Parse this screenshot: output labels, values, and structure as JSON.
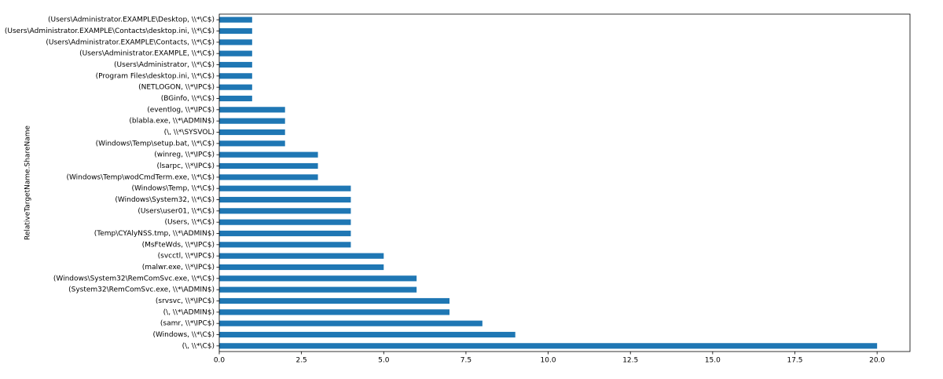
{
  "chart_data": {
    "type": "barh",
    "y_label": "RelativeTargetName.ShareName",
    "categories": [
      "(\\, \\\\*\\C$)",
      "(Windows, \\\\*\\C$)",
      "(samr, \\\\*\\IPC$)",
      "(\\, \\\\*\\ADMIN$)",
      "(srvsvc, \\\\*\\IPC$)",
      "(System32\\RemComSvc.exe, \\\\*\\ADMIN$)",
      "(Windows\\System32\\RemComSvc.exe, \\\\*\\C$)",
      "(malwr.exe, \\\\*\\IPC$)",
      "(svcctl, \\\\*\\IPC$)",
      "(MsFteWds, \\\\*\\IPC$)",
      "(Temp\\CYAlyNSS.tmp, \\\\*\\ADMIN$)",
      "(Users, \\\\*\\C$)",
      "(Users\\user01, \\\\*\\C$)",
      "(Windows\\System32, \\\\*\\C$)",
      "(Windows\\Temp, \\\\*\\C$)",
      "(Windows\\Temp\\wodCmdTerm.exe, \\\\*\\C$)",
      "(lsarpc, \\\\*\\IPC$)",
      "(winreg, \\\\*\\IPC$)",
      "(Windows\\Temp\\setup.bat, \\\\*\\C$)",
      "(\\, \\\\*\\SYSVOL)",
      "(blabla.exe, \\\\*\\ADMIN$)",
      "(eventlog, \\\\*\\IPC$)",
      "(BGinfo, \\\\*\\C$)",
      "(NETLOGON, \\\\*\\IPC$)",
      "(Program Files\\desktop.ini, \\\\*\\C$)",
      "(Users\\Administrator, \\\\*\\C$)",
      "(Users\\Administrator.EXAMPLE, \\\\*\\C$)",
      "(Users\\Administrator.EXAMPLE\\Contacts, \\\\*\\C$)",
      "(Users\\Administrator.EXAMPLE\\Contacts\\desktop.ini, \\\\*\\C$)",
      "(Users\\Administrator.EXAMPLE\\Desktop, \\\\*\\C$)"
    ],
    "values": [
      20,
      9,
      8,
      7,
      7,
      6,
      6,
      5,
      5,
      4,
      4,
      4,
      4,
      4,
      4,
      3,
      3,
      3,
      2,
      2,
      2,
      2,
      1,
      1,
      1,
      1,
      1,
      1,
      1,
      1
    ],
    "color": "#1f77b4",
    "xlim": [
      0,
      21
    ],
    "xticks": [
      {
        "value": 0,
        "label": "0.0"
      },
      2.5,
      {
        "value": 5,
        "label": "5.0"
      },
      7.5,
      {
        "value": 10,
        "label": "10.0"
      },
      12.5,
      {
        "value": 15,
        "label": "15.0"
      },
      17.5,
      {
        "value": 20,
        "label": "20.0"
      }
    ],
    "grid": false
  }
}
